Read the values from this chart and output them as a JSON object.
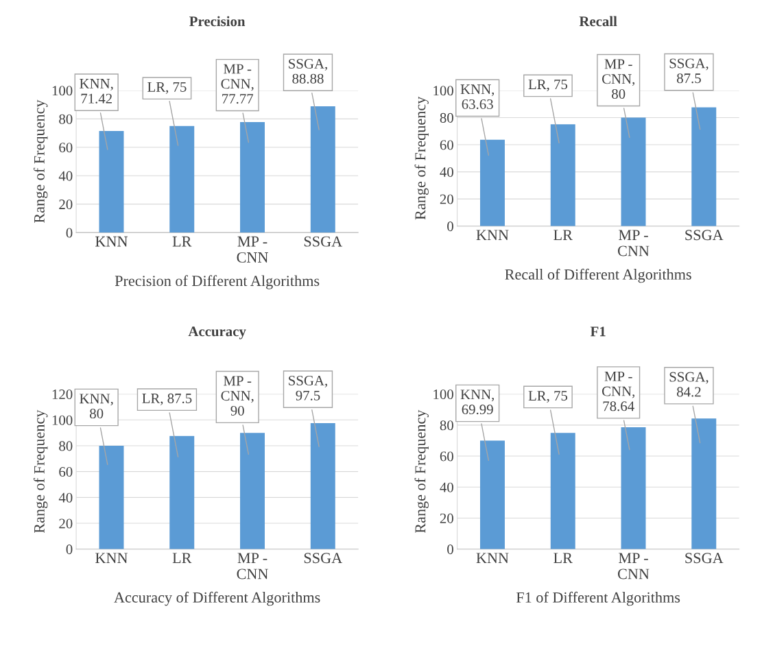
{
  "chart_data": [
    {
      "type": "bar",
      "title": "Precision",
      "xlabel": "Precision of Different Algorithms",
      "ylabel": "Range of Frequency",
      "categories": [
        "KNN",
        "LR",
        "MP -\nCNN",
        "SSGA"
      ],
      "values": [
        71.42,
        75,
        77.77,
        88.88
      ],
      "color": "#5b9bd5",
      "ylim": [
        0,
        100
      ],
      "yticks": [
        0,
        20,
        40,
        60,
        80,
        100
      ],
      "grid": "y",
      "value_labels": [
        "KNN,\n71.42",
        "LR, 75",
        "MP -\nCNN,\n77.77",
        "SSGA,\n88.88"
      ]
    },
    {
      "type": "bar",
      "title": "Recall",
      "xlabel": "Recall of Different Algorithms",
      "ylabel": "Range of Frequency",
      "categories": [
        "KNN",
        "LR",
        "MP -\nCNN",
        "SSGA"
      ],
      "values": [
        63.63,
        75,
        80,
        87.5
      ],
      "color": "#5b9bd5",
      "ylim": [
        0,
        100
      ],
      "yticks": [
        0,
        20,
        40,
        60,
        80,
        100
      ],
      "grid": "y",
      "value_labels": [
        "KNN,\n63.63",
        "LR, 75",
        "MP -\nCNN,\n80",
        "SSGA,\n87.5"
      ]
    },
    {
      "type": "bar",
      "title": "Accuracy",
      "xlabel": "Accuracy of Different Algorithms",
      "ylabel": "Range of Frequency",
      "categories": [
        "KNN",
        "LR",
        "MP -\nCNN",
        "SSGA"
      ],
      "values": [
        80,
        87.5,
        90,
        97.5
      ],
      "color": "#5b9bd5",
      "ylim": [
        0,
        120
      ],
      "yticks": [
        0,
        20,
        40,
        60,
        80,
        100,
        120
      ],
      "grid": "y",
      "value_labels": [
        "KNN,\n80",
        "LR, 87.5",
        "MP -\nCNN,\n90",
        "SSGA,\n97.5"
      ]
    },
    {
      "type": "bar",
      "title": "F1",
      "xlabel": "F1 of Different Algorithms",
      "ylabel": "Range of Frequency",
      "categories": [
        "KNN",
        "LR",
        "MP -\nCNN",
        "SSGA"
      ],
      "values": [
        69.99,
        75,
        78.64,
        84.2
      ],
      "color": "#5b9bd5",
      "ylim": [
        0,
        100
      ],
      "yticks": [
        0,
        20,
        40,
        60,
        80,
        100
      ],
      "grid": "y",
      "value_labels": [
        "KNN,\n69.99",
        "LR, 75",
        "MP -\nCNN,\n78.64",
        "SSGA,\n84.2"
      ]
    }
  ]
}
